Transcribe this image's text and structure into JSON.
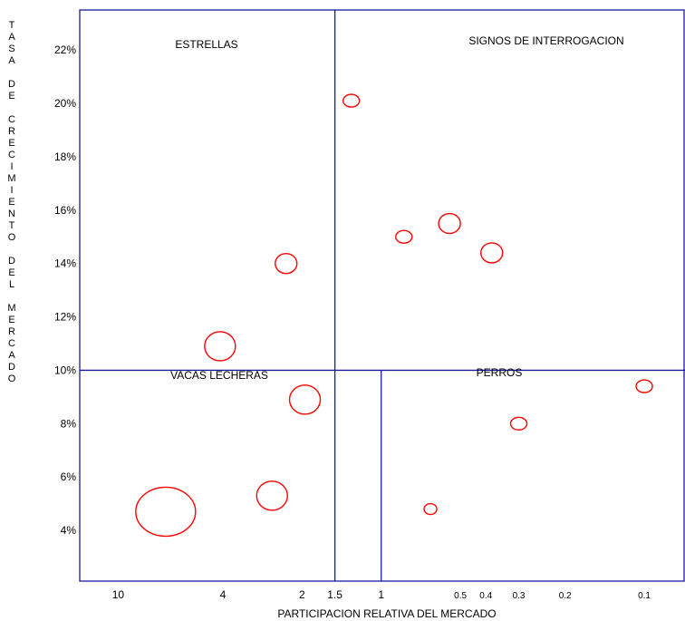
{
  "chart_data": {
    "type": "scatter",
    "title": "",
    "xlabel": "PARTICIPACION RELATIVA DEL MERCADO",
    "ylabel": "TASA DE CRECIMIENTO DEL MERCADO",
    "x_scale": "log",
    "x_reversed": true,
    "xlim": [
      14,
      0.07
    ],
    "ylim": [
      2.1,
      23.5
    ],
    "x_ticks": [
      "10",
      "4",
      "2",
      "1.5",
      "1",
      "0.5",
      "0.4",
      "0.3",
      "0.2",
      "0.1"
    ],
    "x_tick_values": [
      10,
      4,
      2,
      1.5,
      1,
      0.5,
      0.4,
      0.3,
      0.2,
      0.1
    ],
    "y_ticks": [
      "4%",
      "6%",
      "8%",
      "10%",
      "12%",
      "14%",
      "16%",
      "18%",
      "20%",
      "22%"
    ],
    "y_tick_values": [
      4,
      6,
      8,
      10,
      12,
      14,
      16,
      18,
      20,
      22
    ],
    "quadrant_dividers": {
      "x_upper": 1.5,
      "x_lower": 1.0,
      "y": 10
    },
    "quadrant_labels": [
      "ESTRELLAS",
      "SIGNOS DE INTERROGACION",
      "VACAS LECHERAS",
      "PERROS"
    ],
    "grid": false,
    "legend": "none",
    "colors": {
      "axes": "#1a1aa0",
      "bubbles": "#ff0000",
      "text": "#000000"
    },
    "points": [
      {
        "x": 1.3,
        "y": 20.1,
        "size": "small"
      },
      {
        "x": 0.82,
        "y": 15.0,
        "size": "small"
      },
      {
        "x": 0.55,
        "y": 15.5,
        "size": "medium"
      },
      {
        "x": 0.38,
        "y": 14.4,
        "size": "medium"
      },
      {
        "x": 2.3,
        "y": 14.0,
        "size": "medium"
      },
      {
        "x": 4.1,
        "y": 10.9,
        "size": "large"
      },
      {
        "x": 1.95,
        "y": 8.9,
        "size": "large"
      },
      {
        "x": 2.6,
        "y": 5.3,
        "size": "large"
      },
      {
        "x": 6.6,
        "y": 4.7,
        "size": "xlarge"
      },
      {
        "x": 0.65,
        "y": 4.8,
        "size": "tiny"
      },
      {
        "x": 0.3,
        "y": 8.0,
        "size": "small"
      },
      {
        "x": 0.1,
        "y": 9.4,
        "size": "small"
      }
    ]
  }
}
